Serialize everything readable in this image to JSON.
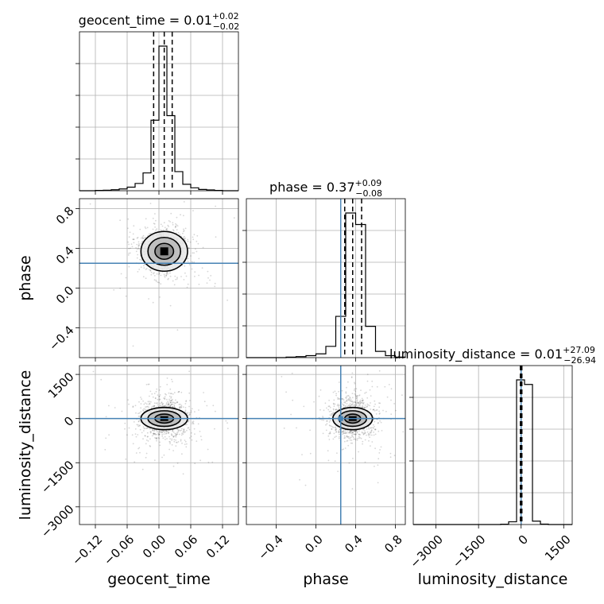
{
  "chart_data": {
    "type": "corner",
    "parameters": [
      "geocent_time",
      "phase",
      "luminosity_distance"
    ],
    "grid": true,
    "injection_color": "#4682b4",
    "quantile_color": "#000000",
    "panels": {
      "geocent_time": {
        "title": "geocent_time = 0.01",
        "title_sup": "+0.02",
        "title_sub": "−0.02",
        "xlabel": "geocent_time",
        "xlim": [
          -0.15,
          0.15
        ],
        "xticks": [
          -0.12,
          -0.06,
          0.0,
          0.06,
          0.12
        ],
        "xticklabels": [
          "−0.12",
          "−0.06",
          "0.00",
          "0.06",
          "0.12"
        ],
        "quantiles": [
          -0.01,
          0.01,
          0.025
        ],
        "injection": null,
        "hist": {
          "edges": [
            -0.15,
            -0.135,
            -0.12,
            -0.105,
            -0.09,
            -0.075,
            -0.06,
            -0.045,
            -0.03,
            -0.015,
            0.0,
            0.015,
            0.03,
            0.045,
            0.06,
            0.075,
            0.09,
            0.105,
            0.12,
            0.135,
            0.15
          ],
          "counts": [
            0,
            0,
            2,
            3,
            6,
            11,
            22,
            45,
            110,
            435,
            892,
            463,
            118,
            40,
            18,
            8,
            5,
            2,
            0,
            0
          ]
        }
      },
      "phase": {
        "title": "phase = 0.37",
        "title_sup": "+0.09",
        "title_sub": "−0.08",
        "xlabel": "phase",
        "ylabel": "phase",
        "xlim": [
          -0.7,
          0.9
        ],
        "xticks": [
          -0.4,
          0.0,
          0.4,
          0.8
        ],
        "xticklabels": [
          "−0.4",
          "0.0",
          "0.4",
          "0.8"
        ],
        "ylim": [
          -0.7,
          0.9
        ],
        "yticks": [
          -0.4,
          0.0,
          0.4,
          0.8
        ],
        "yticklabels": [
          "−0.4",
          "0.0",
          "0.4",
          "0.8"
        ],
        "quantiles": [
          0.29,
          0.37,
          0.46
        ],
        "injection": 0.25,
        "hist": {
          "edges": [
            -0.7,
            -0.6,
            -0.5,
            -0.4,
            -0.3,
            -0.2,
            -0.1,
            0.0,
            0.1,
            0.2,
            0.3,
            0.4,
            0.5,
            0.6,
            0.7,
            0.8,
            0.9
          ],
          "counts": [
            0,
            0,
            0,
            0,
            2,
            4,
            8,
            15,
            45,
            165,
            578,
            532,
            125,
            25,
            8,
            2
          ]
        }
      },
      "luminosity_distance": {
        "title": "luminosity_distance = 0.01",
        "title_sup": "+27.09",
        "title_sub": "−26.94",
        "xlabel": "luminosity_distance",
        "ylabel": "luminosity_distance",
        "xlim": [
          -3800,
          1800
        ],
        "xticks": [
          -3000,
          -1500,
          0,
          1500
        ],
        "xticklabels": [
          "−3000",
          "−1500",
          "0",
          "1500"
        ],
        "ylim": [
          -3600,
          1800
        ],
        "yticks": [
          -3000,
          -1500,
          0,
          1500
        ],
        "yticklabels": [
          "−3000",
          "−1500",
          "0",
          "1500"
        ],
        "quantiles": [
          -27,
          0,
          27
        ],
        "injection": 0,
        "hist": {
          "edges": [
            -3800,
            -3520,
            -3240,
            -2960,
            -2680,
            -2400,
            -2120,
            -1840,
            -1560,
            -1280,
            -1000,
            -720,
            -440,
            -160,
            120,
            400,
            680,
            960,
            1240,
            1520,
            1800
          ],
          "counts": [
            0,
            0,
            0,
            0,
            0,
            0,
            0,
            0,
            0,
            0,
            0,
            2,
            18,
            950,
            920,
            22,
            3,
            0,
            0,
            0
          ]
        }
      }
    }
  }
}
